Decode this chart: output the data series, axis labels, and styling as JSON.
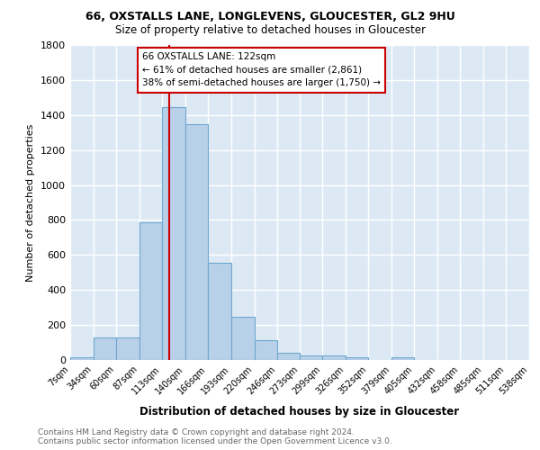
{
  "title1": "66, OXSTALLS LANE, LONGLEVENS, GLOUCESTER, GL2 9HU",
  "title2": "Size of property relative to detached houses in Gloucester",
  "xlabel": "Distribution of detached houses by size in Gloucester",
  "ylabel": "Number of detached properties",
  "footer": "Contains HM Land Registry data © Crown copyright and database right 2024.\nContains public sector information licensed under the Open Government Licence v3.0.",
  "bin_edges": [
    7,
    34,
    60,
    87,
    113,
    140,
    166,
    193,
    220,
    246,
    273,
    299,
    326,
    352,
    379,
    405,
    432,
    458,
    485,
    511,
    538
  ],
  "bin_labels": [
    "7sqm",
    "34sqm",
    "60sqm",
    "87sqm",
    "113sqm",
    "140sqm",
    "166sqm",
    "193sqm",
    "220sqm",
    "246sqm",
    "273sqm",
    "299sqm",
    "326sqm",
    "352sqm",
    "379sqm",
    "405sqm",
    "432sqm",
    "458sqm",
    "485sqm",
    "511sqm",
    "538sqm"
  ],
  "bar_values": [
    15,
    130,
    130,
    785,
    1445,
    1345,
    555,
    245,
    115,
    40,
    28,
    28,
    18,
    0,
    18,
    0,
    0,
    0,
    0,
    0
  ],
  "bar_color": "#b8d0e8",
  "bar_edge_color": "#6fa8d0",
  "bg_color": "#dce9f5",
  "grid_color": "#ffffff",
  "annotation_box_color": "#ffffff",
  "annotation_box_edge": "#cc0000",
  "vline_color": "#cc0000",
  "property_sqm": 122,
  "property_size": "122sqm",
  "pct_smaller": 61,
  "n_smaller": 2861,
  "pct_larger": 38,
  "n_larger": 1750,
  "ylim": [
    0,
    1800
  ],
  "yticks": [
    0,
    200,
    400,
    600,
    800,
    1000,
    1200,
    1400,
    1600,
    1800
  ]
}
